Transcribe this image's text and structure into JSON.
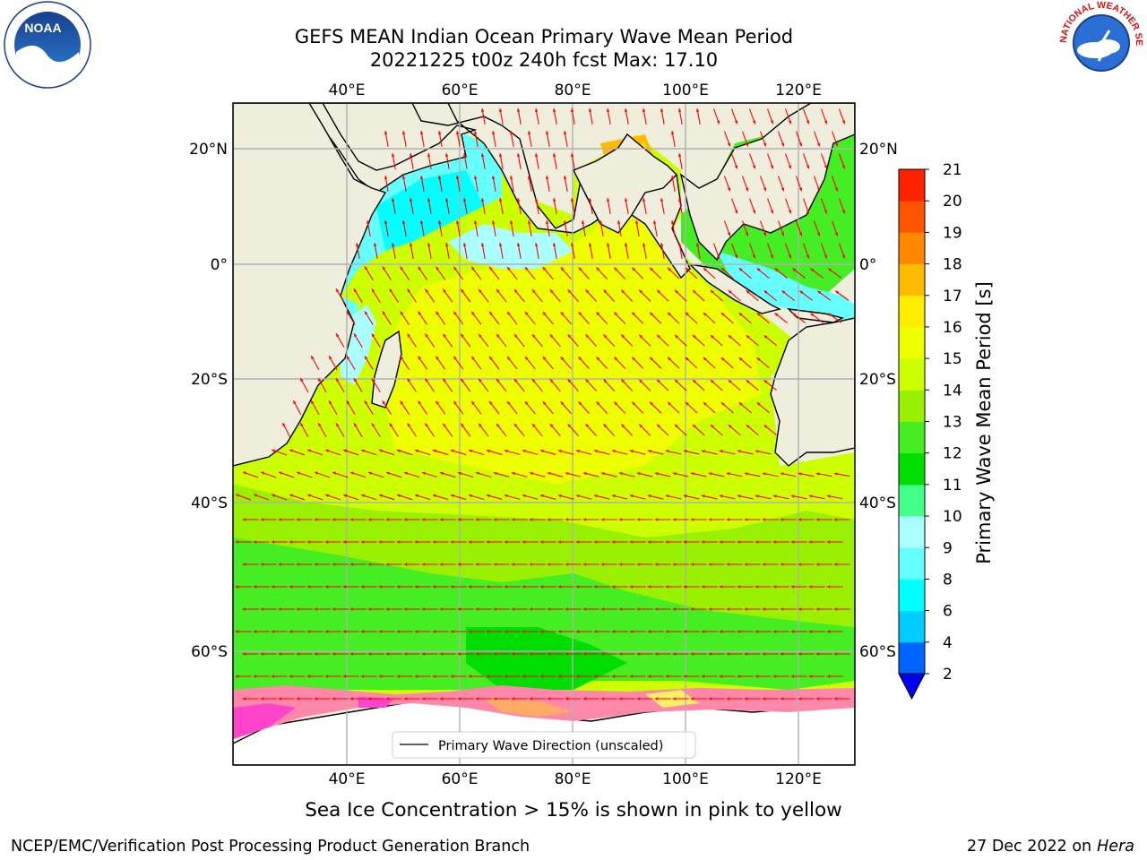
{
  "header": {
    "title_line1": "GEFS MEAN Indian Ocean Primary Wave Mean Period",
    "title_line2": "20221225 t00z 240h fcst   Max: 17.10"
  },
  "logos": {
    "left": {
      "name": "noaa-logo",
      "text": "NOAA"
    },
    "right": {
      "name": "nws-logo",
      "text": "NATIONAL WEATHER SERVICE"
    }
  },
  "map": {
    "lon_labels": [
      "40°E",
      "60°E",
      "80°E",
      "100°E",
      "120°E"
    ],
    "lat_labels": [
      "20°N",
      "0°",
      "20°S",
      "40°S",
      "60°S"
    ],
    "land_color": "#efeddc",
    "gridline_color": "#b0b0b0",
    "arrow_color": "#ff0000",
    "ice_colors": [
      "#ff44cc",
      "#ff88aa",
      "#ffaa66",
      "#ffee66"
    ]
  },
  "legend": {
    "label": "Primary Wave Direction (unscaled)"
  },
  "colorbar": {
    "label": "Primary Wave Mean Period [s]",
    "ticks": [
      "2",
      "4",
      "6",
      "8",
      "9",
      "10",
      "11",
      "12",
      "13",
      "14",
      "15",
      "16",
      "17",
      "18",
      "19",
      "20",
      "21"
    ],
    "colors": [
      "#0064ff",
      "#00ccff",
      "#00ffff",
      "#66ffff",
      "#aaffff",
      "#44ff88",
      "#00dd00",
      "#44ee22",
      "#99f000",
      "#ccff00",
      "#eeff00",
      "#ffee00",
      "#ffbb00",
      "#ff8800",
      "#ff5500",
      "#ff2200"
    ],
    "extend_color": "#0000ee"
  },
  "notes": {
    "sea_ice": "Sea Ice Concentration > 15% is shown in pink to yellow"
  },
  "footer": {
    "left": "NCEP/EMC/Verification Post Processing Product Generation Branch",
    "date": "27 Dec 2022 on",
    "machine": "Hera"
  }
}
